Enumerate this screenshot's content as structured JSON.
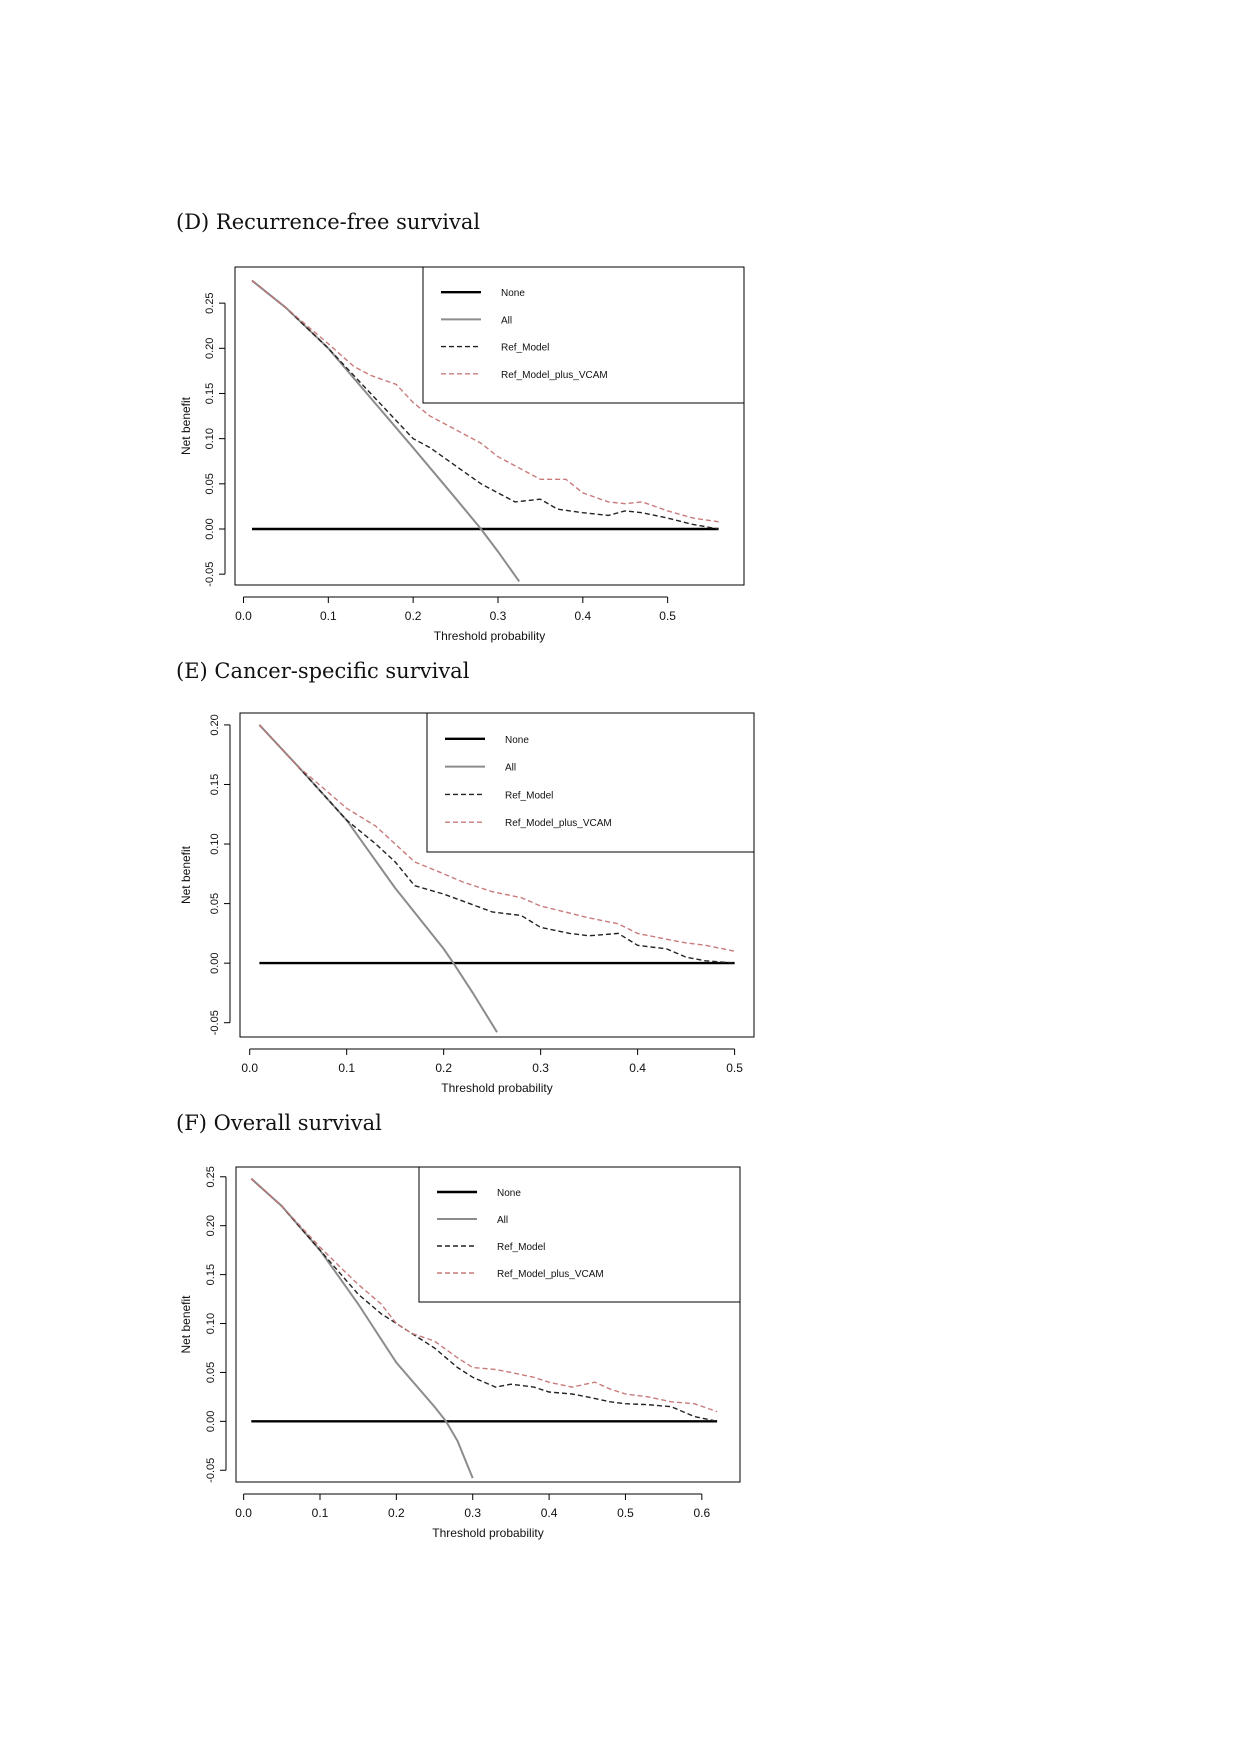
{
  "panel_titles": [
    "(D) Recurrence-free survival",
    "(E) Cancer-specific survival",
    "(F) Overall survival"
  ],
  "colors": {
    "none": "#000000",
    "all": "#8c8c8c",
    "ref_model": "#222222",
    "ref_model_plus_vcam": "#c97b7b",
    "frame": "#000000"
  },
  "chart_data": [
    {
      "type": "line",
      "title": "(D) Recurrence-free survival",
      "xlabel": "Threshold probability",
      "ylabel": "Net benefit",
      "xlim": [
        -0.01,
        0.59
      ],
      "ylim": [
        -0.062,
        0.29
      ],
      "xticks": [
        0.0,
        0.1,
        0.2,
        0.3,
        0.4,
        0.5
      ],
      "xtick_labels": [
        "0.0",
        "0.1",
        "0.2",
        "0.3",
        "0.4",
        "0.5"
      ],
      "yticks": [
        -0.05,
        0.0,
        0.05,
        0.1,
        0.15,
        0.2,
        0.25
      ],
      "ytick_labels": [
        "-0.05",
        "0.00",
        "0.05",
        "0.10",
        "0.15",
        "0.20",
        "0.25"
      ],
      "legend": {
        "position": "top-right",
        "entries": [
          "None",
          "All",
          "Ref_Model",
          "Ref_Model_plus_VCAM"
        ]
      },
      "series": [
        {
          "name": "None",
          "style": "solid",
          "x": [
            0.01,
            0.56
          ],
          "y": [
            0.0,
            0.0
          ]
        },
        {
          "name": "All",
          "style": "solid",
          "x": [
            0.01,
            0.05,
            0.1,
            0.15,
            0.2,
            0.25,
            0.28,
            0.3,
            0.325
          ],
          "y": [
            0.275,
            0.245,
            0.2,
            0.145,
            0.09,
            0.034,
            0.0,
            -0.025,
            -0.058
          ]
        },
        {
          "name": "Ref_Model",
          "style": "dashed",
          "x": [
            0.01,
            0.05,
            0.1,
            0.15,
            0.18,
            0.2,
            0.22,
            0.25,
            0.28,
            0.3,
            0.32,
            0.35,
            0.37,
            0.4,
            0.43,
            0.45,
            0.47,
            0.5,
            0.53,
            0.56
          ],
          "y": [
            0.275,
            0.245,
            0.2,
            0.15,
            0.12,
            0.1,
            0.09,
            0.07,
            0.05,
            0.04,
            0.03,
            0.033,
            0.022,
            0.018,
            0.015,
            0.02,
            0.018,
            0.012,
            0.005,
            0.0
          ]
        },
        {
          "name": "Ref_Model_plus_VCAM",
          "style": "dashed",
          "x": [
            0.01,
            0.05,
            0.1,
            0.13,
            0.15,
            0.18,
            0.2,
            0.22,
            0.25,
            0.28,
            0.3,
            0.33,
            0.35,
            0.38,
            0.4,
            0.43,
            0.45,
            0.47,
            0.5,
            0.53,
            0.56
          ],
          "y": [
            0.275,
            0.245,
            0.205,
            0.18,
            0.17,
            0.16,
            0.14,
            0.125,
            0.11,
            0.095,
            0.08,
            0.065,
            0.055,
            0.055,
            0.04,
            0.03,
            0.028,
            0.03,
            0.02,
            0.012,
            0.008
          ]
        }
      ]
    },
    {
      "type": "line",
      "title": "(E) Cancer-specific survival",
      "xlabel": "Threshold probability",
      "ylabel": "Net benefit",
      "xlim": [
        -0.01,
        0.52
      ],
      "ylim": [
        -0.062,
        0.21
      ],
      "xticks": [
        0.0,
        0.1,
        0.2,
        0.3,
        0.4,
        0.5
      ],
      "xtick_labels": [
        "0.0",
        "0.1",
        "0.2",
        "0.3",
        "0.4",
        "0.5"
      ],
      "yticks": [
        -0.05,
        0.0,
        0.05,
        0.1,
        0.15,
        0.2
      ],
      "ytick_labels": [
        "-0.05",
        "0.00",
        "0.05",
        "0.10",
        "0.15",
        "0.20"
      ],
      "legend": {
        "position": "top-right",
        "entries": [
          "None",
          "All",
          "Ref_Model",
          "Ref_Model_plus_VCAM"
        ]
      },
      "series": [
        {
          "name": "None",
          "style": "solid",
          "x": [
            0.01,
            0.5
          ],
          "y": [
            0.0,
            0.0
          ]
        },
        {
          "name": "All",
          "style": "solid",
          "x": [
            0.01,
            0.05,
            0.1,
            0.15,
            0.2,
            0.21,
            0.23,
            0.255
          ],
          "y": [
            0.2,
            0.165,
            0.12,
            0.063,
            0.012,
            0.0,
            -0.025,
            -0.058
          ]
        },
        {
          "name": "Ref_Model",
          "style": "dashed",
          "x": [
            0.01,
            0.05,
            0.1,
            0.13,
            0.15,
            0.17,
            0.2,
            0.22,
            0.25,
            0.28,
            0.3,
            0.33,
            0.35,
            0.38,
            0.4,
            0.43,
            0.45,
            0.47,
            0.5
          ],
          "y": [
            0.2,
            0.165,
            0.12,
            0.1,
            0.085,
            0.065,
            0.058,
            0.052,
            0.043,
            0.04,
            0.03,
            0.025,
            0.023,
            0.025,
            0.015,
            0.012,
            0.005,
            0.002,
            0.0
          ]
        },
        {
          "name": "Ref_Model_plus_VCAM",
          "style": "dashed",
          "x": [
            0.01,
            0.05,
            0.1,
            0.13,
            0.15,
            0.17,
            0.2,
            0.22,
            0.25,
            0.28,
            0.3,
            0.33,
            0.35,
            0.38,
            0.4,
            0.43,
            0.45,
            0.47,
            0.5
          ],
          "y": [
            0.2,
            0.165,
            0.13,
            0.115,
            0.1,
            0.085,
            0.075,
            0.068,
            0.06,
            0.055,
            0.048,
            0.042,
            0.038,
            0.033,
            0.025,
            0.02,
            0.017,
            0.015,
            0.01
          ]
        }
      ]
    },
    {
      "type": "line",
      "title": "(F) Overall survival",
      "xlabel": "Threshold probability",
      "ylabel": "Net benefit",
      "xlim": [
        -0.01,
        0.65
      ],
      "ylim": [
        -0.062,
        0.26
      ],
      "xticks": [
        0.0,
        0.1,
        0.2,
        0.3,
        0.4,
        0.5,
        0.6
      ],
      "xtick_labels": [
        "0.0",
        "0.1",
        "0.2",
        "0.3",
        "0.4",
        "0.5",
        "0.6"
      ],
      "yticks": [
        -0.05,
        0.0,
        0.05,
        0.1,
        0.15,
        0.2,
        0.25
      ],
      "ytick_labels": [
        "-0.05",
        "0.00",
        "0.05",
        "0.10",
        "0.15",
        "0.20",
        "0.25"
      ],
      "legend": {
        "position": "top-right",
        "entries": [
          "None",
          "All",
          "Ref_Model",
          "Ref_Model_plus_VCAM"
        ]
      },
      "series": [
        {
          "name": "None",
          "style": "solid",
          "x": [
            0.01,
            0.62
          ],
          "y": [
            0.0,
            0.0
          ]
        },
        {
          "name": "All",
          "style": "solid",
          "x": [
            0.01,
            0.05,
            0.1,
            0.15,
            0.2,
            0.25,
            0.265,
            0.28,
            0.3
          ],
          "y": [
            0.248,
            0.22,
            0.175,
            0.12,
            0.06,
            0.015,
            0.0,
            -0.02,
            -0.058
          ]
        },
        {
          "name": "Ref_Model",
          "style": "dashed",
          "x": [
            0.01,
            0.05,
            0.1,
            0.15,
            0.18,
            0.2,
            0.22,
            0.25,
            0.28,
            0.3,
            0.33,
            0.35,
            0.38,
            0.4,
            0.43,
            0.45,
            0.48,
            0.5,
            0.53,
            0.56,
            0.59,
            0.62
          ],
          "y": [
            0.248,
            0.22,
            0.175,
            0.13,
            0.11,
            0.1,
            0.09,
            0.075,
            0.055,
            0.045,
            0.035,
            0.038,
            0.035,
            0.03,
            0.028,
            0.025,
            0.02,
            0.018,
            0.017,
            0.015,
            0.005,
            0.0
          ]
        },
        {
          "name": "Ref_Model_plus_VCAM",
          "style": "dashed",
          "x": [
            0.01,
            0.05,
            0.1,
            0.13,
            0.15,
            0.18,
            0.2,
            0.22,
            0.25,
            0.28,
            0.3,
            0.33,
            0.35,
            0.38,
            0.4,
            0.43,
            0.46,
            0.48,
            0.5,
            0.53,
            0.56,
            0.59,
            0.62
          ],
          "y": [
            0.248,
            0.22,
            0.178,
            0.155,
            0.14,
            0.12,
            0.1,
            0.09,
            0.082,
            0.065,
            0.055,
            0.053,
            0.05,
            0.045,
            0.04,
            0.035,
            0.04,
            0.033,
            0.028,
            0.025,
            0.02,
            0.018,
            0.01
          ]
        }
      ]
    }
  ]
}
